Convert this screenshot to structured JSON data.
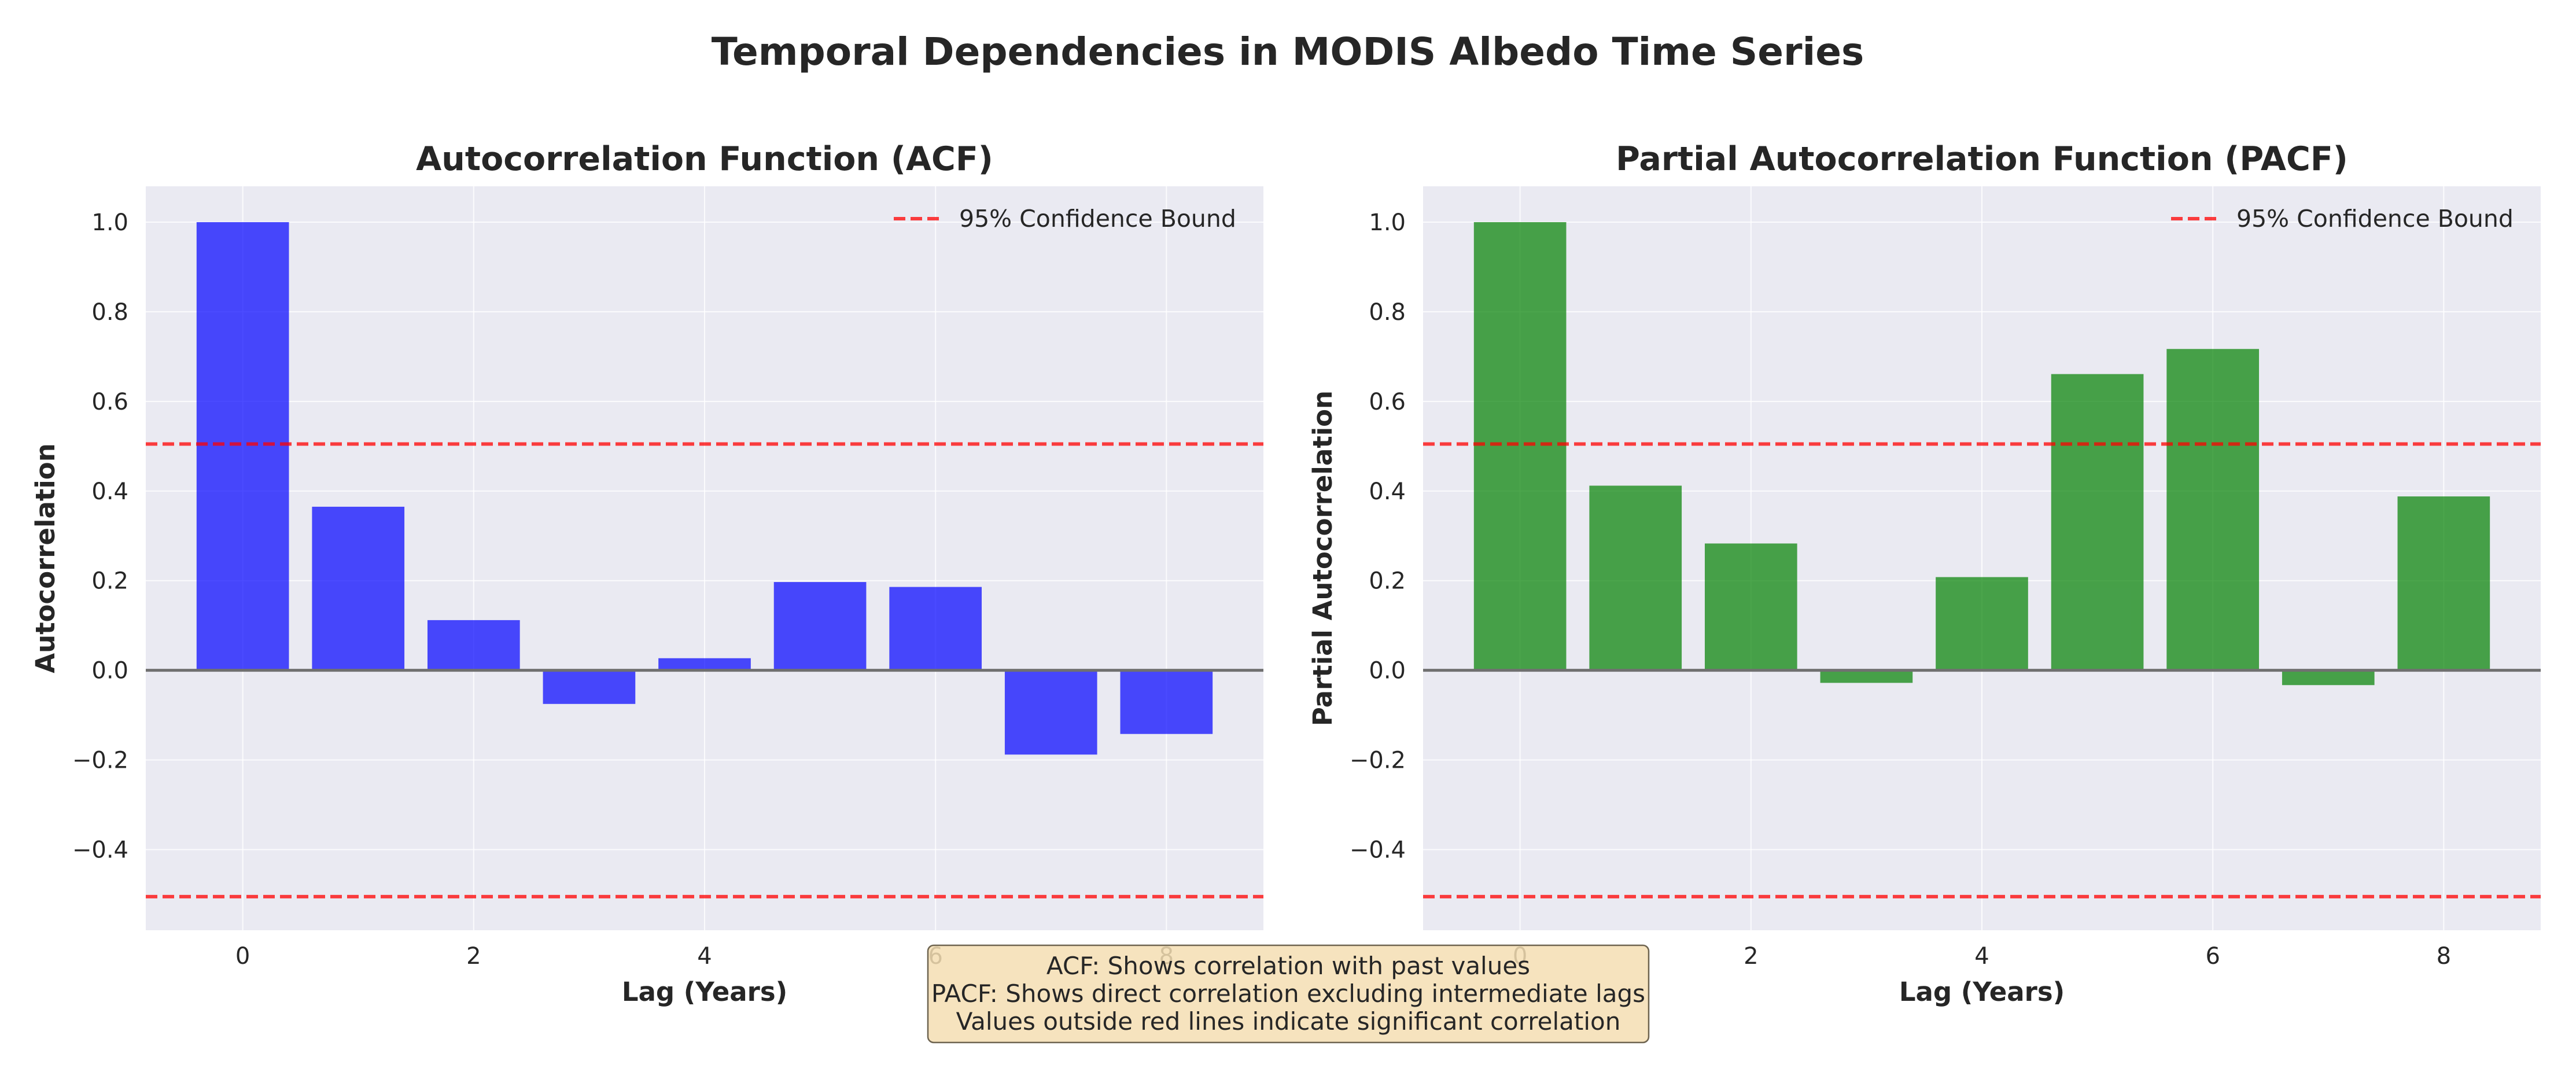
{
  "title": "Temporal Dependencies in MODIS Albedo Time Series",
  "colors": {
    "background": "#EAEAF2",
    "acf_bar": "#0000FF",
    "pacf_bar": "#008000",
    "confidence": "#FF0000",
    "zero_line": "#707070",
    "note_bg": "#F5DEB3"
  },
  "annotation": {
    "lines": [
      "ACF: Shows correlation with past values",
      "PACF: Shows direct correlation excluding intermediate lags",
      "Values outside red lines indicate significant correlation"
    ]
  },
  "chart_data": [
    {
      "type": "bar",
      "id": "acf",
      "title": "Autocorrelation Function (ACF)",
      "xlabel": "Lag (Years)",
      "ylabel": "Autocorrelation",
      "x": [
        0,
        1,
        2,
        3,
        4,
        5,
        6,
        7,
        8
      ],
      "values": [
        1.0,
        0.365,
        0.112,
        -0.075,
        0.027,
        0.197,
        0.186,
        -0.188,
        -0.142
      ],
      "xlim": [
        -0.84,
        8.84
      ],
      "ylim": [
        -0.58,
        1.08
      ],
      "xticks": [
        0,
        2,
        4,
        6,
        8
      ],
      "yticks": [
        -0.4,
        -0.2,
        0.0,
        0.2,
        0.4,
        0.6,
        0.8,
        1.0
      ],
      "ytick_labels": [
        "−0.4",
        "−0.2",
        "0.0",
        "0.2",
        "0.4",
        "0.6",
        "0.8",
        "1.0"
      ],
      "confidence_bound": 0.505,
      "legend": {
        "label": "95% Confidence Bound",
        "position": "upper right"
      },
      "grid": true
    },
    {
      "type": "bar",
      "id": "pacf",
      "title": "Partial Autocorrelation Function (PACF)",
      "xlabel": "Lag (Years)",
      "ylabel": "Partial Autocorrelation",
      "x": [
        0,
        1,
        2,
        3,
        4,
        5,
        6,
        7,
        8
      ],
      "values": [
        1.0,
        0.412,
        0.283,
        -0.028,
        0.208,
        0.661,
        0.717,
        -0.033,
        0.388
      ],
      "xlim": [
        -0.84,
        8.84
      ],
      "ylim": [
        -0.58,
        1.08
      ],
      "xticks": [
        0,
        2,
        4,
        6,
        8
      ],
      "yticks": [
        -0.4,
        -0.2,
        0.0,
        0.2,
        0.4,
        0.6,
        0.8,
        1.0
      ],
      "ytick_labels": [
        "−0.4",
        "−0.2",
        "0.0",
        "0.2",
        "0.4",
        "0.6",
        "0.8",
        "1.0"
      ],
      "confidence_bound": 0.505,
      "legend": {
        "label": "95% Confidence Bound",
        "position": "upper right"
      },
      "grid": true
    }
  ]
}
